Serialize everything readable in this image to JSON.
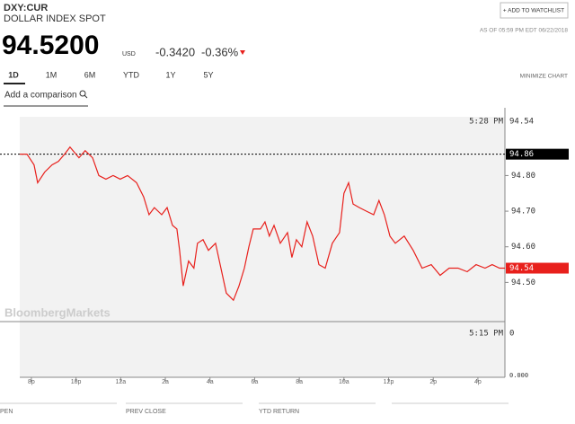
{
  "header": {
    "ticker": "DXY:CUR",
    "name": "DOLLAR INDEX SPOT",
    "price": "94.5200",
    "currency": "USD",
    "change": "-0.3420",
    "change_pct": "-0.36%",
    "watchlist": "+ ADD TO WATCHLIST",
    "as_of": "AS OF 05:59 PM EDT 06/22/2018"
  },
  "tabs": [
    "1D",
    "1M",
    "6M",
    "YTD",
    "1Y",
    "5Y"
  ],
  "minimize": "MINIMIZE CHART",
  "comparison": "Add a comparison",
  "chart_data": {
    "type": "line",
    "watermark": "BloombergMarkets",
    "color": "#e8201c",
    "x": [
      -0.52,
      -0.2,
      0.12,
      0.28,
      0.6,
      0.93,
      1.21,
      1.49,
      1.73,
      2.13,
      2.41,
      2.74,
      3.02,
      3.34,
      3.66,
      3.98,
      4.31,
      4.71,
      5.03,
      5.27,
      5.51,
      5.84,
      6.08,
      6.32,
      6.52,
      6.64,
      6.8,
      7.04,
      7.28,
      7.44,
      7.69,
      7.93,
      8.25,
      8.49,
      8.73,
      9.05,
      9.3,
      9.54,
      9.74,
      9.94,
      10.26,
      10.46,
      10.66,
      10.87,
      11.15,
      11.47,
      11.67,
      11.87,
      12.11,
      12.35,
      12.6,
      12.88,
      13.16,
      13.48,
      13.8,
      14,
      14.21,
      14.41,
      14.69,
      15.01,
      15.33,
      15.57,
      15.81,
      16.06,
      16.3,
      16.7,
      17.1,
      17.5,
      17.91,
      18.31,
      18.71,
      19.11,
      19.52,
      19.92,
      20.32,
      20.64,
      20.97,
      21.21
    ],
    "values": [
      94.86,
      94.86,
      94.83,
      94.78,
      94.81,
      94.83,
      94.84,
      94.86,
      94.88,
      94.85,
      94.87,
      94.85,
      94.8,
      94.79,
      94.8,
      94.79,
      94.8,
      94.78,
      94.74,
      94.69,
      94.71,
      94.69,
      94.71,
      94.66,
      94.65,
      94.59,
      94.49,
      94.56,
      94.54,
      94.61,
      94.62,
      94.59,
      94.61,
      94.54,
      94.47,
      94.45,
      94.49,
      94.54,
      94.6,
      94.65,
      94.65,
      94.67,
      94.63,
      94.66,
      94.61,
      94.64,
      94.57,
      94.62,
      94.6,
      94.67,
      94.63,
      94.55,
      94.54,
      94.61,
      94.64,
      94.75,
      94.78,
      94.72,
      94.71,
      94.7,
      94.69,
      94.73,
      94.69,
      94.63,
      94.61,
      94.63,
      94.59,
      94.54,
      94.55,
      94.52,
      94.54,
      94.54,
      94.53,
      94.55,
      94.54,
      94.55,
      94.54,
      94.54
    ],
    "xlim": [
      -0.52,
      21.21
    ],
    "ylim": [
      94.39,
      94.965
    ],
    "xticks": [
      {
        "value": 0,
        "label": "8p"
      },
      {
        "value": 2,
        "label": "10p"
      },
      {
        "value": 4,
        "label": "12a"
      },
      {
        "value": 6,
        "label": "2a"
      },
      {
        "value": 8,
        "label": "4a"
      },
      {
        "value": 10,
        "label": "6a"
      },
      {
        "value": 12,
        "label": "8a"
      },
      {
        "value": 14,
        "label": "10a"
      },
      {
        "value": 16,
        "label": "12p"
      },
      {
        "value": 18,
        "label": "2p"
      },
      {
        "value": 20,
        "label": "4p"
      }
    ],
    "yticks": [
      {
        "value": 94.5,
        "label": "94.50"
      },
      {
        "value": 94.6,
        "label": "94.60"
      },
      {
        "value": 94.7,
        "label": "94.70"
      },
      {
        "value": 94.8,
        "label": "94.80"
      }
    ],
    "prev_close": {
      "value": 94.86,
      "label": "94.86"
    },
    "last": {
      "value": 94.54,
      "label": "94.54"
    },
    "hover": {
      "time": "5:28 PM",
      "value": "94.54"
    },
    "volume": {
      "time": "5:15 PM",
      "value": "0",
      "axis_label": "0.000"
    }
  },
  "footer": [
    "PEN",
    "PREV CLOSE",
    "YTD RETURN"
  ]
}
